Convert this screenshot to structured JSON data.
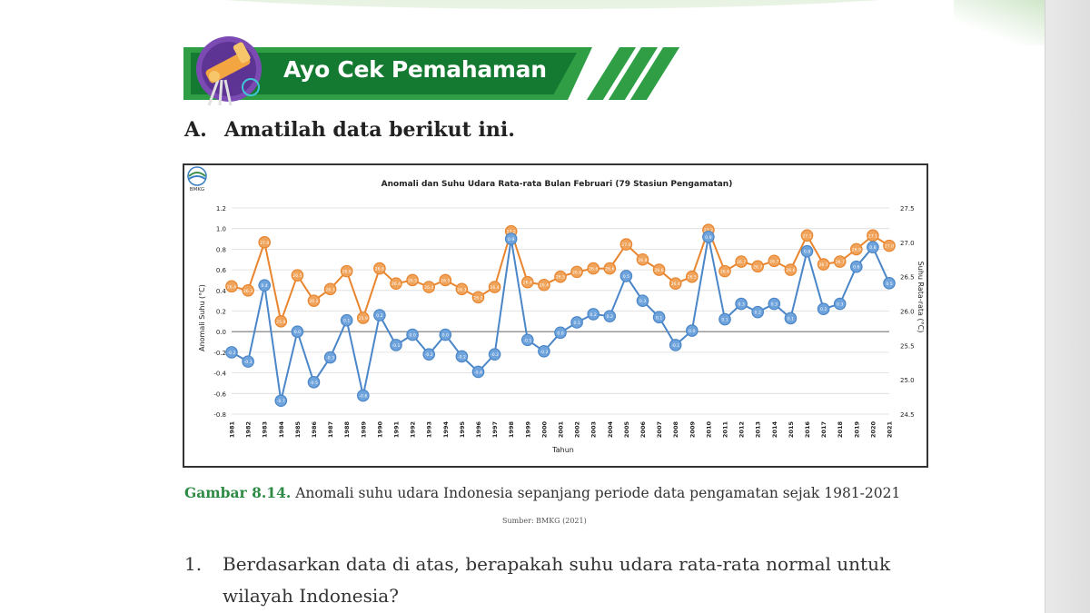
{
  "header": {
    "title": "Ayo Cek Pemahaman"
  },
  "section": {
    "letter": "A.",
    "title": "Amatilah data berikut ini."
  },
  "caption": {
    "label": "Gambar 8.14.",
    "text": " Anomali suhu udara Indonesia sepanjang periode data pengamatan sejak 1981-2021",
    "source": "Sumber: BMKG (2021)"
  },
  "question": {
    "number": "1.",
    "lines": [
      "Berdasarkan data di atas, berapakah suhu udara rata-rata normal untuk",
      "wilayah Indonesia?"
    ]
  },
  "colors": {
    "anomaly": "#4a86c8",
    "temperature": "#e8852e",
    "brand_green": "#2f9e45"
  },
  "chart_data": {
    "type": "line",
    "title": "Anomali dan Suhu Udara Rata-rata Bulan Februari (79 Stasiun Pengamatan)",
    "logo_text": "BMKG",
    "xlabel": "Tahun",
    "ylabel_left": "Anomali Suhu (°C)",
    "ylabel_right": "Suhu Rata-rata (°C)",
    "categories": [
      "1981",
      "1982",
      "1983",
      "1984",
      "1985",
      "1986",
      "1987",
      "1988",
      "1989",
      "1990",
      "1991",
      "1992",
      "1993",
      "1994",
      "1995",
      "1996",
      "1997",
      "1998",
      "1999",
      "2000",
      "2001",
      "2002",
      "2003",
      "2004",
      "2005",
      "2006",
      "2007",
      "2008",
      "2009",
      "2010",
      "2011",
      "2012",
      "2013",
      "2014",
      "2015",
      "2016",
      "2017",
      "2018",
      "2019",
      "2020",
      "2021"
    ],
    "left_axis": {
      "min": -0.8,
      "max": 1.2,
      "ticks": [
        "-0.8",
        "-0.6",
        "-0.4",
        "-0.2",
        "0.0",
        "0.2",
        "0.4",
        "0.6",
        "0.8",
        "1.0",
        "1.2"
      ]
    },
    "right_axis": {
      "min": 24.5,
      "max": 27.5,
      "ticks": [
        "24.5",
        "25.0",
        "25.5",
        "26.0",
        "26.5",
        "27.0",
        "27.5"
      ]
    },
    "series": [
      {
        "name": "Anomali Suhu",
        "axis": "left",
        "values": [
          -0.2,
          -0.29,
          0.45,
          -0.67,
          0.0,
          -0.49,
          -0.25,
          0.11,
          -0.62,
          0.16,
          -0.13,
          -0.03,
          -0.22,
          -0.03,
          -0.24,
          -0.39,
          -0.22,
          0.9,
          -0.08,
          -0.19,
          -0.01,
          0.09,
          0.17,
          0.15,
          0.54,
          0.3,
          0.14,
          -0.13,
          0.01,
          0.92,
          0.12,
          0.27,
          0.19,
          0.27,
          0.13,
          0.78,
          0.22,
          0.27,
          0.63,
          0.82,
          0.47
        ],
        "labels": [
          "-0.2",
          "-0.3",
          "0.4",
          "-0.7",
          "0.0",
          "-0.5",
          "-0.3",
          "0.1",
          "-0.6",
          "0.2",
          "-0.1",
          "0.0",
          "-0.2",
          "0.0",
          "-0.2",
          "-0.4",
          "-0.2",
          "0.9",
          "-0.1",
          "-0.2",
          "0.0",
          "0.1",
          "0.2",
          "0.2",
          "0.5",
          "0.3",
          "0.1",
          "-0.1",
          "0.0",
          "0.9",
          "0.1",
          "0.3",
          "0.2",
          "0.3",
          "0.1",
          "0.8",
          "0.2",
          "0.3",
          "0.6",
          "0.8",
          "0.5"
        ]
      },
      {
        "name": "Suhu Rata-rata",
        "axis": "right",
        "values": [
          26.36,
          26.3,
          27.0,
          25.85,
          26.52,
          26.15,
          26.32,
          26.58,
          25.9,
          26.62,
          26.4,
          26.45,
          26.35,
          26.45,
          26.32,
          26.2,
          26.35,
          27.16,
          26.42,
          26.38,
          26.5,
          26.57,
          26.62,
          26.62,
          26.97,
          26.75,
          26.6,
          26.4,
          26.5,
          27.18,
          26.58,
          26.72,
          26.65,
          26.73,
          26.6,
          27.1,
          26.68,
          26.72,
          26.9,
          27.1,
          26.95
        ],
        "labels": [
          "26.4",
          "26.3",
          "27.0",
          "25.9",
          "26.5",
          "26.2",
          "26.3",
          "26.6",
          "25.9",
          "26.6",
          "26.4",
          "26.5",
          "26.4",
          "26.5",
          "26.3",
          "26.2",
          "26.4",
          "27.2",
          "26.4",
          "26.4",
          "26.5",
          "26.6",
          "26.6",
          "26.6",
          "27.0",
          "26.8",
          "26.6",
          "26.4",
          "26.5",
          "27.2",
          "26.6",
          "26.7",
          "26.7",
          "26.7",
          "26.6",
          "27.1",
          "26.7",
          "26.7",
          "26.9",
          "27.1",
          "27.0"
        ]
      }
    ]
  }
}
